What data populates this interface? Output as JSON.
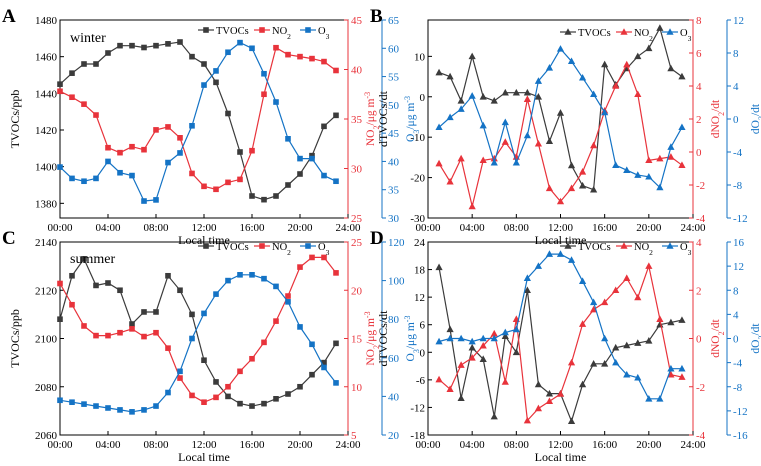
{
  "colors": {
    "tvocs": "#3b3b3b",
    "no2": "#e8333b",
    "o3": "#1473c5",
    "axis": "#000000"
  },
  "shared": {
    "xlabel": "Local time",
    "xticks": [
      "00:00",
      "04:00",
      "08:00",
      "12:00",
      "16:00",
      "20:00",
      "24:00"
    ]
  },
  "chart_data": [
    {
      "id": "A",
      "panel_label": "A",
      "type": "line",
      "season": "winter",
      "xlim": [
        0,
        24
      ],
      "left_axis": {
        "label": "TVOCs/ppb",
        "lim": [
          1372,
          1480
        ],
        "ticks": [
          1380,
          1400,
          1420,
          1440,
          1460,
          1480
        ]
      },
      "red_axis": {
        "label_main": "NO",
        "label_sub": "2",
        "label_tail": "/μg m",
        "label_sup": "-3",
        "lim": [
          25,
          45
        ],
        "ticks": [
          25,
          30,
          35,
          40,
          45
        ]
      },
      "blue_axis": {
        "label_main": "O",
        "label_sub": "3",
        "label_tail": "/μg m",
        "label_sup": "-3",
        "lim": [
          30,
          65
        ],
        "ticks": [
          30,
          35,
          40,
          45,
          50,
          55,
          60,
          65
        ]
      },
      "legend": [
        {
          "key": "tvocs",
          "main": "TVOCs",
          "sub": ""
        },
        {
          "key": "no2",
          "main": "NO",
          "sub": "2"
        },
        {
          "key": "o3",
          "main": "O",
          "sub": "3"
        }
      ],
      "series": [
        {
          "name": "TVOCs",
          "color_key": "tvocs",
          "marker": "square",
          "axis": "left",
          "x": [
            0,
            1,
            2,
            3,
            4,
            5,
            6,
            7,
            8,
            9,
            10,
            11,
            12,
            13,
            14,
            15,
            16,
            17,
            18,
            19,
            20,
            21,
            22,
            23
          ],
          "values": [
            1445,
            1451,
            1456,
            1456,
            1462,
            1466,
            1466,
            1465,
            1466,
            1467,
            1468,
            1460,
            1456,
            1446,
            1429,
            1408,
            1384,
            1382,
            1384,
            1390,
            1396,
            1406,
            1422,
            1428
          ]
        },
        {
          "name": "NO2",
          "color_key": "no2",
          "marker": "square",
          "axis": "red",
          "x": [
            0,
            1,
            2,
            3,
            4,
            5,
            6,
            7,
            8,
            9,
            10,
            11,
            12,
            13,
            14,
            15,
            16,
            17,
            18,
            19,
            20,
            21,
            22,
            23
          ],
          "values": [
            37.8,
            37.2,
            36.5,
            35.4,
            32.1,
            31.6,
            32.2,
            31.9,
            33.9,
            34.2,
            33.1,
            29.5,
            28.2,
            27.9,
            28.6,
            28.9,
            31.8,
            37.5,
            42.2,
            41.5,
            41.3,
            41.1,
            40.8,
            39.9
          ]
        },
        {
          "name": "O3",
          "color_key": "o3",
          "marker": "square",
          "axis": "blue",
          "x": [
            0,
            1,
            2,
            3,
            4,
            5,
            6,
            7,
            8,
            9,
            10,
            11,
            12,
            13,
            14,
            15,
            16,
            17,
            18,
            19,
            20,
            21,
            22,
            23
          ],
          "values": [
            39,
            37,
            36.5,
            37,
            40,
            38,
            37.5,
            33,
            33.2,
            39.8,
            41.5,
            46.3,
            53.5,
            56,
            59.3,
            61,
            60,
            55.5,
            50.5,
            44,
            40.5,
            40.5,
            37.5,
            36.5
          ]
        }
      ]
    },
    {
      "id": "B",
      "panel_label": "B",
      "type": "line",
      "season": "",
      "xlim": [
        0,
        24
      ],
      "left_axis": {
        "label": "dTVOCs/dt",
        "lim": [
          -30,
          19
        ],
        "ticks": [
          -30,
          -20,
          -10,
          0,
          10
        ]
      },
      "red_axis": {
        "label_main": "dNO",
        "label_sub": "2",
        "label_tail": "/dt",
        "label_sup": "",
        "lim": [
          -4,
          8
        ],
        "ticks": [
          -4,
          -2,
          0,
          2,
          4,
          6,
          8
        ]
      },
      "blue_axis": {
        "label_main": "dO",
        "label_sub": "3",
        "label_tail": "/dt",
        "label_sup": "",
        "lim": [
          -12,
          12
        ],
        "ticks": [
          -12,
          -8,
          -4,
          0,
          4,
          8,
          12
        ]
      },
      "legend": [
        {
          "key": "tvocs",
          "main": "TVOCs",
          "sub": ""
        },
        {
          "key": "no2",
          "main": "NO",
          "sub": "2"
        },
        {
          "key": "o3",
          "main": "O",
          "sub": "3"
        }
      ],
      "series": [
        {
          "name": "TVOCs",
          "color_key": "tvocs",
          "marker": "triangle",
          "axis": "left",
          "x": [
            1,
            2,
            3,
            4,
            5,
            6,
            7,
            8,
            9,
            10,
            11,
            12,
            13,
            14,
            15,
            16,
            17,
            18,
            19,
            20,
            21,
            22,
            23
          ],
          "values": [
            6,
            5,
            -1,
            10,
            0,
            -1,
            1,
            1,
            1,
            0,
            -11,
            -4,
            -17,
            -22,
            -23,
            8,
            3,
            7,
            10,
            12,
            17,
            7,
            5
          ]
        },
        {
          "name": "NO2",
          "color_key": "no2",
          "marker": "triangle",
          "axis": "red",
          "x": [
            1,
            2,
            3,
            4,
            5,
            6,
            7,
            8,
            9,
            10,
            11,
            12,
            13,
            14,
            15,
            16,
            17,
            18,
            19,
            20,
            21,
            22,
            23
          ],
          "values": [
            -0.7,
            -1.8,
            -0.4,
            -3.3,
            -0.5,
            -0.4,
            0.6,
            -0.3,
            3.2,
            0.5,
            -2.2,
            -3.0,
            -2.2,
            -1.2,
            0.4,
            2.5,
            4.0,
            5.3,
            3.5,
            -0.5,
            -0.4,
            -0.3,
            -0.8
          ]
        },
        {
          "name": "O3",
          "color_key": "o3",
          "marker": "triangle",
          "axis": "blue",
          "x": [
            1,
            2,
            3,
            4,
            5,
            6,
            7,
            8,
            9,
            10,
            11,
            12,
            13,
            14,
            15,
            16,
            17,
            18,
            19,
            20,
            21,
            22,
            23
          ],
          "values": [
            -1.0,
            0.2,
            1.2,
            2.8,
            -0.8,
            -5.3,
            -0.4,
            -5.3,
            -2.0,
            4.6,
            6.2,
            8.5,
            7.0,
            5.0,
            3.0,
            0.8,
            -5.6,
            -6.2,
            -6.8,
            -7.0,
            -8.3,
            -3.4,
            -1.0
          ]
        }
      ]
    },
    {
      "id": "C",
      "panel_label": "C",
      "type": "line",
      "season": "summer",
      "xlim": [
        0,
        24
      ],
      "left_axis": {
        "label": "TVOCs/ppb",
        "lim": [
          2060,
          2140
        ],
        "ticks": [
          2060,
          2080,
          2100,
          2120,
          2140
        ]
      },
      "red_axis": {
        "label_main": "NO",
        "label_sub": "2",
        "label_tail": "/μg m",
        "label_sup": "-3",
        "lim": [
          5,
          25
        ],
        "ticks": [
          5,
          10,
          15,
          20,
          25
        ]
      },
      "blue_axis": {
        "label_main": "O",
        "label_sub": "3",
        "label_tail": "/μg m",
        "label_sup": "-3",
        "lim": [
          20,
          120
        ],
        "ticks": [
          20,
          40,
          60,
          80,
          100,
          120
        ]
      },
      "legend": [
        {
          "key": "tvocs",
          "main": "TVOCs",
          "sub": ""
        },
        {
          "key": "no2",
          "main": "NO",
          "sub": "2"
        },
        {
          "key": "o3",
          "main": "O",
          "sub": "3"
        }
      ],
      "series": [
        {
          "name": "TVOCs",
          "color_key": "tvocs",
          "marker": "square",
          "axis": "left",
          "x": [
            0,
            1,
            2,
            3,
            4,
            5,
            6,
            7,
            8,
            9,
            10,
            11,
            12,
            13,
            14,
            15,
            16,
            17,
            18,
            19,
            20,
            21,
            22,
            23
          ],
          "values": [
            2108,
            2126,
            2133,
            2122,
            2123,
            2120,
            2106,
            2111,
            2111,
            2126,
            2120,
            2110,
            2091,
            2082,
            2076,
            2073,
            2072,
            2073,
            2075,
            2077,
            2080,
            2085,
            2090,
            2098
          ]
        },
        {
          "name": "NO2",
          "color_key": "no2",
          "marker": "square",
          "axis": "red",
          "x": [
            0,
            1,
            2,
            3,
            4,
            5,
            6,
            7,
            8,
            9,
            10,
            11,
            12,
            13,
            14,
            15,
            16,
            17,
            18,
            19,
            20,
            21,
            22,
            23
          ],
          "values": [
            20.7,
            18.5,
            16.3,
            15.3,
            15.3,
            15.6,
            16.0,
            15.2,
            15.6,
            14.0,
            10.9,
            9.1,
            8.4,
            8.9,
            10.0,
            11.6,
            12.9,
            14.6,
            16.8,
            19.4,
            22.4,
            23.4,
            23.4,
            21.8
          ]
        },
        {
          "name": "O3",
          "color_key": "o3",
          "marker": "square",
          "axis": "blue",
          "x": [
            0,
            1,
            2,
            3,
            4,
            5,
            6,
            7,
            8,
            9,
            10,
            11,
            12,
            13,
            14,
            15,
            16,
            17,
            18,
            19,
            20,
            21,
            22,
            23
          ],
          "values": [
            38,
            37,
            36,
            35,
            34,
            33,
            32,
            33,
            35,
            42,
            53,
            70,
            83,
            93,
            100,
            103,
            103,
            101,
            97,
            89,
            76,
            67,
            55,
            47
          ]
        }
      ]
    },
    {
      "id": "D",
      "panel_label": "D",
      "type": "line",
      "season": "",
      "xlim": [
        0,
        24
      ],
      "left_axis": {
        "label": "dTVOCs/dt",
        "lim": [
          -18,
          24
        ],
        "ticks": [
          -18,
          -12,
          -6,
          0,
          6,
          12,
          18,
          24
        ]
      },
      "red_axis": {
        "label_main": "dNO",
        "label_sub": "2",
        "label_tail": "/dt",
        "label_sup": "",
        "lim": [
          -4,
          4
        ],
        "ticks": [
          -4,
          -2,
          0,
          2,
          4
        ]
      },
      "blue_axis": {
        "label_main": "dO",
        "label_sub": "3",
        "label_tail": "/dt",
        "label_sup": "",
        "lim": [
          -16,
          16
        ],
        "ticks": [
          -16,
          -12,
          -8,
          -4,
          0,
          4,
          8,
          12,
          16
        ]
      },
      "legend": [
        {
          "key": "tvocs",
          "main": "TVOCs",
          "sub": ""
        },
        {
          "key": "no2",
          "main": "NO",
          "sub": "2"
        },
        {
          "key": "o3",
          "main": "O",
          "sub": "3"
        }
      ],
      "series": [
        {
          "name": "TVOCs",
          "color_key": "tvocs",
          "marker": "triangle",
          "axis": "left",
          "x": [
            1,
            2,
            3,
            4,
            5,
            6,
            7,
            8,
            9,
            10,
            11,
            12,
            13,
            14,
            15,
            16,
            17,
            18,
            19,
            20,
            21,
            22,
            23
          ],
          "values": [
            18.5,
            5,
            -10,
            1,
            -1.5,
            -14,
            3.5,
            0,
            13.5,
            -7,
            -9,
            -9,
            -15,
            -7,
            -2.5,
            -2.5,
            1,
            1.5,
            2,
            2.5,
            6,
            6.5,
            7
          ]
        },
        {
          "name": "NO2",
          "color_key": "no2",
          "marker": "triangle",
          "axis": "red",
          "x": [
            1,
            2,
            3,
            4,
            5,
            6,
            7,
            8,
            9,
            10,
            11,
            12,
            13,
            14,
            15,
            16,
            17,
            18,
            19,
            20,
            21,
            22,
            23
          ],
          "values": [
            -1.7,
            -2.1,
            -1.1,
            -0.8,
            -0.3,
            0.2,
            -1.8,
            0.8,
            -3.4,
            -2.9,
            -2.6,
            -2.3,
            -1.0,
            0.6,
            1.2,
            1.5,
            2.0,
            2.5,
            1.7,
            3.0,
            0.8,
            -1.5,
            -1.6
          ]
        },
        {
          "name": "O3",
          "color_key": "o3",
          "marker": "triangle",
          "axis": "blue",
          "x": [
            1,
            2,
            3,
            4,
            5,
            6,
            7,
            8,
            9,
            10,
            11,
            12,
            13,
            14,
            15,
            16,
            17,
            18,
            19,
            20,
            21,
            22,
            23
          ],
          "values": [
            -0.5,
            0,
            0,
            -0.5,
            0,
            0,
            1,
            1.5,
            10,
            12,
            14,
            14,
            13,
            9.5,
            6,
            0,
            -4,
            -6,
            -6.5,
            -10,
            -10,
            -5,
            -5
          ]
        }
      ]
    }
  ]
}
